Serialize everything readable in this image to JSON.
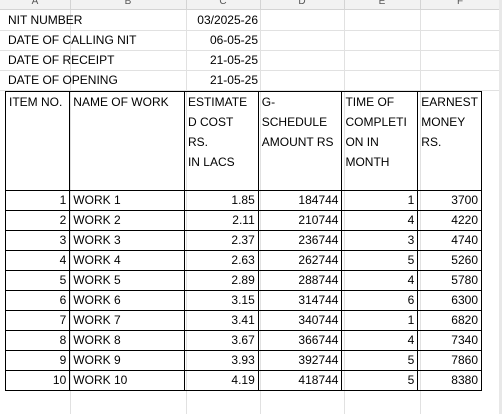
{
  "columns": [
    "A",
    "B",
    "C",
    "D",
    "E",
    "F"
  ],
  "info": [
    {
      "label": "NIT NUMBER",
      "value": "03/2025-26"
    },
    {
      "label": "DATE OF CALLING NIT",
      "value": "06-05-25"
    },
    {
      "label": "DATE OF RECEIPT",
      "value": "21-05-25"
    },
    {
      "label": "DATE OF OPENING",
      "value": "21-05-25"
    }
  ],
  "table": {
    "headers": {
      "item_no": "ITEM NO.",
      "name": "NAME OF WORK",
      "estimate": [
        "ESTIMATE",
        "D COST RS.",
        "IN LACS"
      ],
      "gschedule": [
        "G-SCHEDULE",
        "AMOUNT RS"
      ],
      "time": [
        "TIME OF",
        "COMPLETI",
        "ON IN",
        "MONTH"
      ],
      "earnest": [
        "EARNEST",
        "MONEY",
        "RS."
      ]
    },
    "rows": [
      {
        "item": "1",
        "name": "WORK 1",
        "estimate": "1.85",
        "gschedule": "184744",
        "time": "1",
        "earnest": "3700"
      },
      {
        "item": "2",
        "name": "WORK 2",
        "estimate": "2.11",
        "gschedule": "210744",
        "time": "4",
        "earnest": "4220"
      },
      {
        "item": "3",
        "name": "WORK 3",
        "estimate": "2.37",
        "gschedule": "236744",
        "time": "3",
        "earnest": "4740"
      },
      {
        "item": "4",
        "name": "WORK 4",
        "estimate": "2.63",
        "gschedule": "262744",
        "time": "5",
        "earnest": "5260"
      },
      {
        "item": "5",
        "name": "WORK 5",
        "estimate": "2.89",
        "gschedule": "288744",
        "time": "4",
        "earnest": "5780"
      },
      {
        "item": "6",
        "name": "WORK 6",
        "estimate": "3.15",
        "gschedule": "314744",
        "time": "6",
        "earnest": "6300"
      },
      {
        "item": "7",
        "name": "WORK 7",
        "estimate": "3.41",
        "gschedule": "340744",
        "time": "1",
        "earnest": "6820"
      },
      {
        "item": "8",
        "name": "WORK 8",
        "estimate": "3.67",
        "gschedule": "366744",
        "time": "4",
        "earnest": "7340"
      },
      {
        "item": "9",
        "name": "WORK 9",
        "estimate": "3.93",
        "gschedule": "392744",
        "time": "5",
        "earnest": "7860"
      },
      {
        "item": "10",
        "name": "WORK 10",
        "estimate": "4.19",
        "gschedule": "418744",
        "time": "5",
        "earnest": "8380"
      }
    ]
  }
}
